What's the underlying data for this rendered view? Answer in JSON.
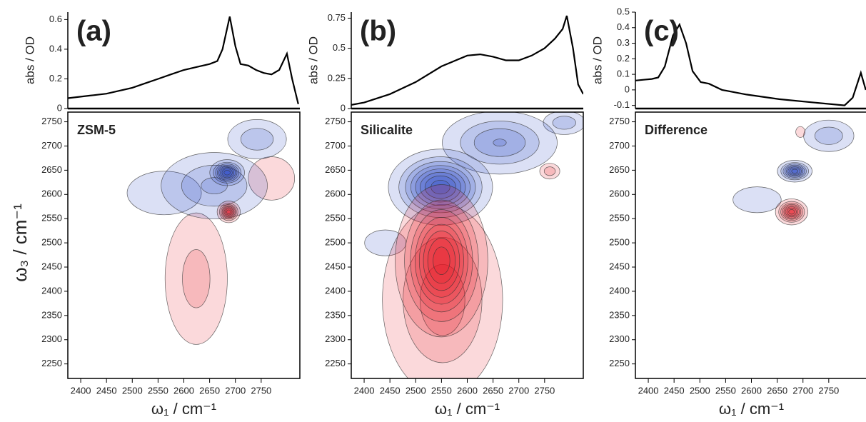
{
  "chart_data": [
    {
      "type": "line",
      "title": "(a)",
      "ylabel": "abs / OD",
      "color": "#000000",
      "x": [
        2375,
        2400,
        2425,
        2450,
        2475,
        2500,
        2525,
        2550,
        2575,
        2600,
        2625,
        2650,
        2665,
        2675,
        2689,
        2700,
        2710,
        2725,
        2740,
        2755,
        2770,
        2785,
        2800,
        2810,
        2822
      ],
      "values": [
        0.07,
        0.08,
        0.09,
        0.1,
        0.12,
        0.14,
        0.17,
        0.2,
        0.23,
        0.26,
        0.28,
        0.3,
        0.32,
        0.4,
        0.62,
        0.42,
        0.3,
        0.29,
        0.26,
        0.24,
        0.23,
        0.26,
        0.37,
        0.2,
        0.03
      ],
      "xlim": [
        2375,
        2825
      ],
      "ylim": [
        0,
        0.65
      ],
      "yticks": [
        0,
        0.2,
        0.4,
        0.6
      ]
    },
    {
      "type": "contour",
      "label": "ZSM-5",
      "xlabel": "ω₁ / cm⁻¹",
      "ylabel": "ω₃ / cm⁻¹",
      "positive_color": "#e8141c",
      "negative_color": "#1f3fc0",
      "peaks": [
        {
          "x": 2562,
          "y": 2603,
          "amplitude": -0.12,
          "sx": 80,
          "sy": 50
        },
        {
          "x": 2770,
          "y": 2633,
          "amplitude": 0.15,
          "sx": 40,
          "sy": 40
        },
        {
          "x": 2624,
          "y": 2426,
          "amplitude": 0.25,
          "sx": 40,
          "sy": 90
        },
        {
          "x": 2742,
          "y": 2714,
          "amplitude": -0.3,
          "sx": 35,
          "sy": 25
        },
        {
          "x": 2659,
          "y": 2618,
          "amplitude": -0.35,
          "sx": 60,
          "sy": 40
        },
        {
          "x": 2684,
          "y": 2645,
          "amplitude": -1,
          "sx": 15,
          "sy": 12
        },
        {
          "x": 2687,
          "y": 2564,
          "amplitude": 1,
          "sx": 10,
          "sy": 10
        }
      ],
      "xlim": [
        2375,
        2825
      ],
      "ylim": [
        2220,
        2770
      ],
      "xticks": [
        2400,
        2450,
        2500,
        2550,
        2600,
        2650,
        2700,
        2750
      ],
      "yticks": [
        2250,
        2300,
        2350,
        2400,
        2450,
        2500,
        2550,
        2600,
        2650,
        2700,
        2750
      ]
    },
    {
      "type": "line",
      "title": "(b)",
      "ylabel": "abs / OD",
      "color": "#000000",
      "x": [
        2375,
        2400,
        2450,
        2500,
        2550,
        2600,
        2625,
        2650,
        2675,
        2700,
        2725,
        2750,
        2770,
        2785,
        2793,
        2805,
        2815,
        2825
      ],
      "values": [
        0.03,
        0.05,
        0.12,
        0.22,
        0.35,
        0.44,
        0.45,
        0.43,
        0.4,
        0.4,
        0.44,
        0.5,
        0.58,
        0.66,
        0.77,
        0.5,
        0.2,
        0.12
      ],
      "xlim": [
        2375,
        2825
      ],
      "ylim": [
        0,
        0.8
      ],
      "yticks": [
        0,
        0.25,
        0.5,
        0.75
      ]
    },
    {
      "type": "contour",
      "label": "Silicalite",
      "xlabel": "ω₁ / cm⁻¹",
      "positive_color": "#e8141c",
      "negative_color": "#1f3fc0",
      "peaks": [
        {
          "x": 2441,
          "y": 2500,
          "amplitude": -0.1,
          "sx": 60,
          "sy": 40
        },
        {
          "x": 2788,
          "y": 2748,
          "amplitude": -0.3,
          "sx": 25,
          "sy": 15
        },
        {
          "x": 2663,
          "y": 2707,
          "amplitude": -0.45,
          "sx": 60,
          "sy": 35
        },
        {
          "x": 2552,
          "y": 2382,
          "amplitude": 0.4,
          "sx": 65,
          "sy": 110
        },
        {
          "x": 2760,
          "y": 2648,
          "amplitude": 0.3,
          "sx": 12,
          "sy": 10
        },
        {
          "x": 2548,
          "y": 2615,
          "amplitude": -1,
          "sx": 45,
          "sy": 35
        },
        {
          "x": 2550,
          "y": 2463,
          "amplitude": 1,
          "sx": 40,
          "sy": 70
        }
      ],
      "xlim": [
        2375,
        2825
      ],
      "ylim": [
        2220,
        2770
      ],
      "xticks": [
        2400,
        2450,
        2500,
        2550,
        2600,
        2650,
        2700,
        2750
      ],
      "yticks": [
        2250,
        2300,
        2350,
        2400,
        2450,
        2500,
        2550,
        2600,
        2650,
        2700,
        2750
      ]
    },
    {
      "type": "line",
      "title": "(c)",
      "ylabel": "abs / OD",
      "color": "#000000",
      "x": [
        2662,
        2667,
        2672,
        2676,
        2680,
        2685,
        2689,
        2693,
        2697,
        2702,
        2707,
        2715,
        2730,
        2750,
        2770,
        2790,
        2795,
        2800,
        2803
      ],
      "values": [
        0.06,
        0.065,
        0.07,
        0.08,
        0.15,
        0.35,
        0.42,
        0.3,
        0.12,
        0.05,
        0.04,
        0.0,
        -0.03,
        -0.06,
        -0.08,
        -0.1,
        -0.05,
        0.11,
        0.0
      ],
      "xlim": [
        2662,
        2804
      ],
      "ylim": [
        -0.12,
        0.5
      ],
      "yticks": [
        -0.1,
        0,
        0.1,
        0.2,
        0.3,
        0.4,
        0.5
      ]
    },
    {
      "type": "contour",
      "label": "Difference",
      "xlabel": "ω₁ / cm⁻¹",
      "positive_color": "#e8141c",
      "negative_color": "#1f3fc0",
      "peaks": [
        {
          "x": 2611,
          "y": 2589,
          "amplitude": -0.1,
          "sx": 70,
          "sy": 40
        },
        {
          "x": 2750,
          "y": 2721,
          "amplitude": -0.3,
          "sx": 30,
          "sy": 20
        },
        {
          "x": 2695,
          "y": 2729,
          "amplitude": 0.15,
          "sx": 8,
          "sy": 10
        },
        {
          "x": 2684,
          "y": 2648,
          "amplitude": -1,
          "sx": 15,
          "sy": 10
        },
        {
          "x": 2678,
          "y": 2564,
          "amplitude": 1,
          "sx": 14,
          "sy": 12
        }
      ],
      "xlim": [
        2375,
        2825
      ],
      "ylim": [
        2220,
        2770
      ],
      "xticks": [
        2400,
        2450,
        2500,
        2550,
        2600,
        2650,
        2700,
        2750
      ],
      "yticks": [
        2250,
        2300,
        2350,
        2400,
        2450,
        2500,
        2550,
        2600,
        2650,
        2700,
        2750
      ]
    }
  ]
}
